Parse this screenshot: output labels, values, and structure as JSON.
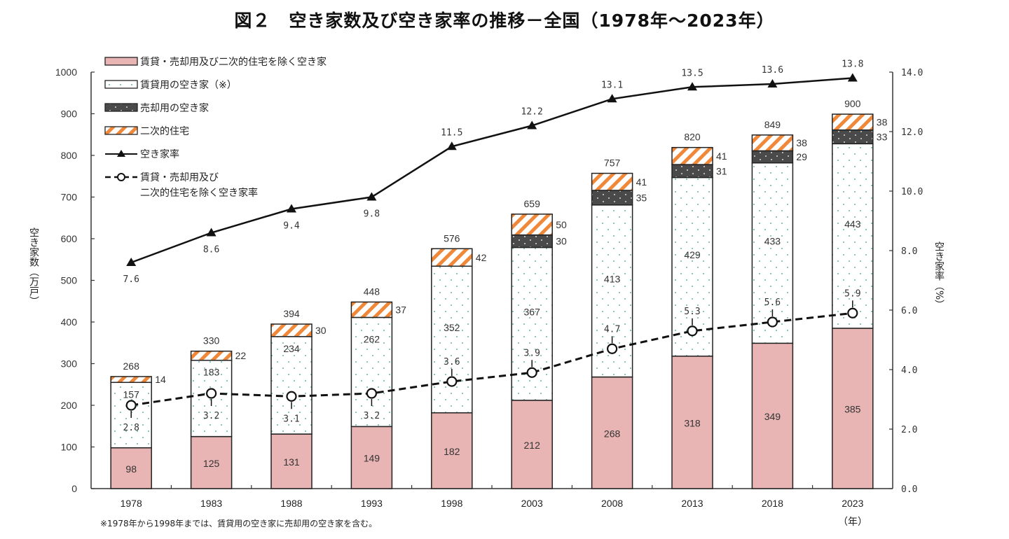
{
  "title": "図２　空き家数及び空き家率の推移－全国（1978年～2023年）",
  "chart_data": {
    "type": "bar",
    "subtype": "stacked-bar-with-lines",
    "title": "図２　空き家数及び空き家率の推移－全国（1978年～2023年）",
    "xlabel": "（年）",
    "ylabel": "空き家数（万戸）",
    "y2label": "空き家率（%）",
    "ylim": [
      0,
      1000
    ],
    "yticks": [
      "0",
      "100",
      "200",
      "300",
      "400",
      "500",
      "600",
      "700",
      "800",
      "900",
      "1000"
    ],
    "y2lim": [
      0,
      14
    ],
    "y2ticks": [
      "0.0",
      "2.0",
      "4.0",
      "6.0",
      "8.0",
      "10.0",
      "12.0",
      "14.0"
    ],
    "grid": false,
    "legend_position": "top-left",
    "categories": [
      "1978",
      "1983",
      "1988",
      "1993",
      "1998",
      "2003",
      "2008",
      "2013",
      "2018",
      "2023"
    ],
    "series": [
      {
        "name": "賃貸・売却用及び二次的住宅を除く空き家",
        "kind": "bar",
        "color": "#e8b4b4",
        "values": [
          98,
          125,
          131,
          149,
          182,
          212,
          268,
          318,
          349,
          385
        ]
      },
      {
        "name": "賃貸用の空き家（※）",
        "kind": "bar",
        "color": "#ffffff",
        "pattern": "teal-dots",
        "values": [
          157,
          183,
          234,
          262,
          352,
          367,
          413,
          429,
          433,
          443
        ]
      },
      {
        "name": "売却用の空き家",
        "kind": "bar",
        "color": "#4a4a4a",
        "pattern": "white-dots",
        "values": [
          null,
          null,
          null,
          null,
          null,
          30,
          35,
          31,
          29,
          33
        ]
      },
      {
        "name": "二次的住宅",
        "kind": "bar",
        "color": "#f0883a",
        "pattern": "orange-stripes",
        "values": [
          14,
          22,
          30,
          37,
          42,
          50,
          41,
          41,
          38,
          38
        ]
      },
      {
        "name": "空き家率",
        "kind": "line",
        "axis": "right",
        "marker": "triangle",
        "style": "solid",
        "values": [
          7.6,
          8.6,
          9.4,
          9.8,
          11.5,
          12.2,
          13.1,
          13.5,
          13.6,
          13.8
        ],
        "labels": [
          "7.6",
          "8.6",
          "9.4",
          "9.8",
          "11.5",
          "12.2",
          "13.1",
          "13.5",
          "13.6",
          "13.8"
        ]
      },
      {
        "name": "賃貸・売却用及び二次的住宅を除く空き家率",
        "kind": "line",
        "axis": "right",
        "marker": "circle",
        "style": "dashed",
        "values": [
          2.8,
          3.2,
          3.1,
          3.2,
          3.6,
          3.9,
          4.7,
          5.3,
          5.6,
          5.9
        ],
        "labels": [
          "2.8",
          "3.2",
          "3.1",
          "3.2",
          "3.6",
          "3.9",
          "4.7",
          "5.3",
          "5.6",
          "5.9"
        ]
      }
    ],
    "totals": [
      268,
      330,
      394,
      448,
      576,
      659,
      757,
      820,
      849,
      900
    ],
    "legend": [
      {
        "label": "賃貸・売却用及び二次的住宅を除く空き家",
        "icon": "pink-bar-swatch"
      },
      {
        "label": "賃貸用の空き家（※）",
        "icon": "dotted-white-bar-swatch"
      },
      {
        "label": "売却用の空き家",
        "icon": "dark-bar-swatch"
      },
      {
        "label": "二次的住宅",
        "icon": "striped-orange-bar-swatch"
      },
      {
        "label": "空き家率",
        "icon": "line-triangle-swatch"
      },
      {
        "label": "賃貸・売却用及び",
        "label2": "二次的住宅を除く空き家率",
        "icon": "dashed-line-circle-swatch"
      }
    ],
    "note": "※1978年から1998年までは、賃貸用の空き家に売却用の空き家を含む。"
  }
}
